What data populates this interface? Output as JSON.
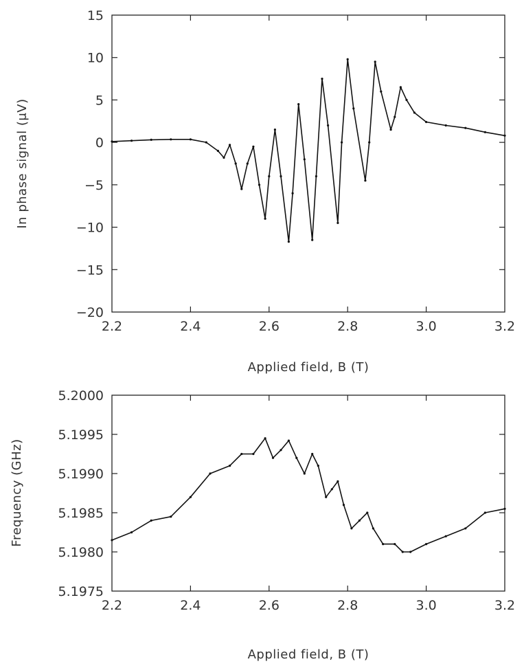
{
  "chart_data": [
    {
      "type": "line",
      "xlabel": "Applied field, B (T)",
      "ylabel": "In phase signal (μV)",
      "xlim": [
        2.2,
        3.2
      ],
      "ylim": [
        -20,
        15
      ],
      "x_ticks": [
        "2.2",
        "2.4",
        "2.6",
        "2.8",
        "3.0",
        "3.2"
      ],
      "y_ticks": [
        "15",
        "10",
        "5",
        "0",
        "−5",
        "−10",
        "−15",
        "−20"
      ],
      "series": [
        {
          "x": [
            2.2,
            2.25,
            2.3,
            2.35,
            2.4,
            2.44,
            2.47,
            2.485,
            2.5,
            2.515,
            2.53,
            2.545,
            2.56,
            2.575,
            2.59,
            2.6,
            2.615,
            2.63,
            2.65,
            2.66,
            2.675,
            2.69,
            2.71,
            2.72,
            2.735,
            2.75,
            2.775,
            2.785,
            2.8,
            2.815,
            2.845,
            2.855,
            2.87,
            2.885,
            2.91,
            2.92,
            2.935,
            2.95,
            2.97,
            3.0,
            3.05,
            3.1,
            3.15,
            3.2
          ],
          "y": [
            0.1,
            0.2,
            0.3,
            0.35,
            0.35,
            0.0,
            -1.0,
            -1.8,
            -0.3,
            -2.5,
            -5.5,
            -2.5,
            -0.5,
            -5.0,
            -9.0,
            -4.0,
            1.5,
            -4.0,
            -11.7,
            -6.0,
            4.5,
            -2.0,
            -11.5,
            -4.0,
            7.5,
            2.0,
            -9.5,
            0.0,
            9.8,
            4.0,
            -4.5,
            0.0,
            9.5,
            6.0,
            1.5,
            3.0,
            6.5,
            5.0,
            3.5,
            2.4,
            2.0,
            1.7,
            1.2,
            0.8
          ]
        }
      ]
    },
    {
      "type": "line",
      "xlabel": "Applied field, B (T)",
      "ylabel": "Frequency (GHz)",
      "xlim": [
        2.2,
        3.2
      ],
      "ylim": [
        5.1975,
        5.2
      ],
      "x_ticks": [
        "2.2",
        "2.4",
        "2.6",
        "2.8",
        "3.0",
        "3.2"
      ],
      "y_ticks": [
        "5.2000",
        "5.1995",
        "5.1990",
        "5.1985",
        "5.1980",
        "5.1975"
      ],
      "series": [
        {
          "x": [
            2.2,
            2.25,
            2.3,
            2.35,
            2.4,
            2.45,
            2.5,
            2.53,
            2.56,
            2.59,
            2.61,
            2.63,
            2.65,
            2.67,
            2.69,
            2.71,
            2.725,
            2.745,
            2.76,
            2.775,
            2.79,
            2.81,
            2.83,
            2.85,
            2.865,
            2.89,
            2.92,
            2.94,
            2.96,
            3.0,
            3.05,
            3.1,
            3.15,
            3.2
          ],
          "y": [
            5.19815,
            5.19825,
            5.1984,
            5.19845,
            5.1987,
            5.199,
            5.1991,
            5.19925,
            5.19925,
            5.19945,
            5.1992,
            5.1993,
            5.19942,
            5.1992,
            5.199,
            5.19925,
            5.1991,
            5.1987,
            5.1988,
            5.1989,
            5.1986,
            5.1983,
            5.1984,
            5.1985,
            5.1983,
            5.1981,
            5.1981,
            5.198,
            5.198,
            5.1981,
            5.1982,
            5.1983,
            5.1985,
            5.19855
          ]
        }
      ]
    }
  ]
}
